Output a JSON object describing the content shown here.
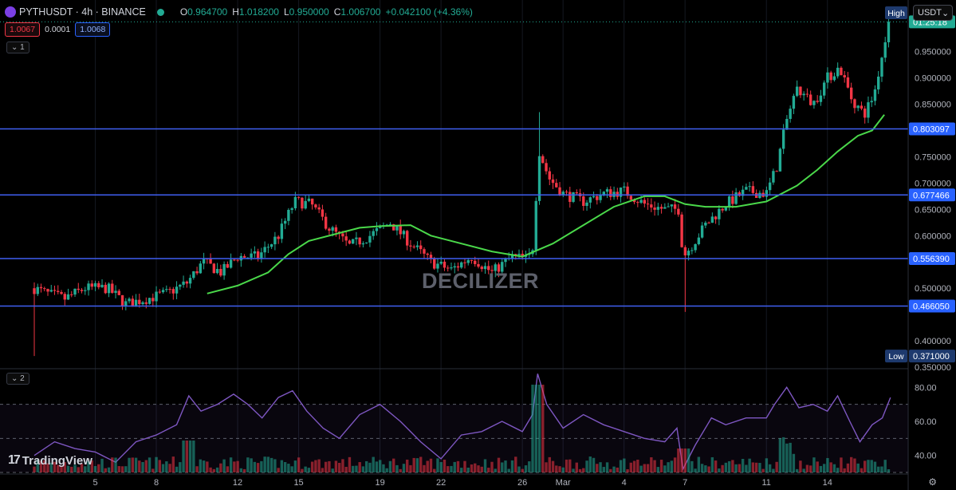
{
  "header": {
    "symbol": "PYTHUSDT · 4h · BINANCE",
    "open_label": "O",
    "open": "0.964700",
    "high_label": "H",
    "high": "1.018200",
    "low_label": "L",
    "low": "0.950000",
    "close_label": "C",
    "close": "1.006700",
    "change": "+0.042100 (+4.36%)",
    "bid": "1.0067",
    "spread": "0.0001",
    "ask": "1.0068",
    "pane1_label": "1",
    "pane2_label": "2",
    "currency": "USDT",
    "watermark": "DECILIZER",
    "brand": "TradingView"
  },
  "colors": {
    "up": "#22ab94",
    "down": "#f23645",
    "ma": "#4ad84a",
    "level": "#3f5ef0",
    "rsi": "#7e57c2",
    "background": "#000000"
  },
  "chart_data": [
    {
      "type": "candlestick",
      "interval": "4h",
      "ylim": [
        0.35,
        1.03
      ],
      "yticks": [
        "0.950000",
        "0.900000",
        "0.850000",
        "0.800000",
        "0.750000",
        "0.700000",
        "0.650000",
        "0.600000",
        "0.550000",
        "0.500000",
        "0.450000",
        "0.400000",
        "0.350000"
      ],
      "ytick_values": [
        0.95,
        0.9,
        0.85,
        0.8,
        0.75,
        0.7,
        0.65,
        0.6,
        0.55,
        0.5,
        0.45,
        0.4,
        0.35
      ],
      "xticks": [
        "5",
        "8",
        "12",
        "15",
        "19",
        "22",
        "26",
        "Mar",
        "4",
        "7",
        "11",
        "14"
      ],
      "xtick_positions": [
        3.0,
        6.0,
        10.0,
        13.0,
        17.0,
        20.0,
        24.0,
        26.0,
        29.0,
        32.0,
        36.0,
        39.0
      ],
      "x_range": [
        0,
        42.5
      ],
      "price_levels": [
        {
          "label": "0.803097",
          "value": 0.803097
        },
        {
          "label": "0.677466",
          "value": 0.677466
        },
        {
          "label": "0.556390",
          "value": 0.55639
        },
        {
          "label": "0.466050",
          "value": 0.46605
        }
      ],
      "high_marker": {
        "label": "High",
        "value": 1.0182
      },
      "low_marker": {
        "label": "Low",
        "value": 0.371
      },
      "countdown_label": "01:25:18",
      "last_price": 1.0067,
      "price_path": [
        {
          "x": 0,
          "y": 0.5
        },
        {
          "x": 0.6,
          "y": 0.49
        },
        {
          "x": 1.5,
          "y": 0.48
        },
        {
          "x": 2.5,
          "y": 0.5
        },
        {
          "x": 3.6,
          "y": 0.5
        },
        {
          "x": 4.5,
          "y": 0.47
        },
        {
          "x": 5.5,
          "y": 0.48
        },
        {
          "x": 6.5,
          "y": 0.49
        },
        {
          "x": 7.5,
          "y": 0.51
        },
        {
          "x": 8.3,
          "y": 0.55
        },
        {
          "x": 9.2,
          "y": 0.53
        },
        {
          "x": 10,
          "y": 0.56
        },
        {
          "x": 11,
          "y": 0.56
        },
        {
          "x": 12,
          "y": 0.6
        },
        {
          "x": 12.8,
          "y": 0.665
        },
        {
          "x": 13.6,
          "y": 0.66
        },
        {
          "x": 14.5,
          "y": 0.615
        },
        {
          "x": 15.5,
          "y": 0.58
        },
        {
          "x": 16.5,
          "y": 0.6
        },
        {
          "x": 17.5,
          "y": 0.625
        },
        {
          "x": 18.5,
          "y": 0.585
        },
        {
          "x": 19.5,
          "y": 0.55
        },
        {
          "x": 20.5,
          "y": 0.535
        },
        {
          "x": 21.5,
          "y": 0.56
        },
        {
          "x": 22.5,
          "y": 0.53
        },
        {
          "x": 23.5,
          "y": 0.56
        },
        {
          "x": 24.3,
          "y": 0.555
        },
        {
          "x": 24.6,
          "y": 0.59
        },
        {
          "x": 24.75,
          "y": 0.77
        },
        {
          "x": 25.3,
          "y": 0.71
        },
        {
          "x": 26,
          "y": 0.68
        },
        {
          "x": 27,
          "y": 0.665
        },
        {
          "x": 28,
          "y": 0.68
        },
        {
          "x": 29,
          "y": 0.685
        },
        {
          "x": 30,
          "y": 0.66
        },
        {
          "x": 31,
          "y": 0.65
        },
        {
          "x": 31.7,
          "y": 0.65
        },
        {
          "x": 31.9,
          "y": 0.56
        },
        {
          "x": 32.3,
          "y": 0.58
        },
        {
          "x": 33,
          "y": 0.62
        },
        {
          "x": 34,
          "y": 0.66
        },
        {
          "x": 35,
          "y": 0.685
        },
        {
          "x": 36,
          "y": 0.68
        },
        {
          "x": 36.5,
          "y": 0.73
        },
        {
          "x": 37,
          "y": 0.82
        },
        {
          "x": 37.5,
          "y": 0.88
        },
        {
          "x": 38.3,
          "y": 0.85
        },
        {
          "x": 39,
          "y": 0.9
        },
        {
          "x": 39.6,
          "y": 0.92
        },
        {
          "x": 40.2,
          "y": 0.86
        },
        {
          "x": 40.8,
          "y": 0.83
        },
        {
          "x": 41.3,
          "y": 0.87
        },
        {
          "x": 41.8,
          "y": 0.965
        },
        {
          "x": 42.1,
          "y": 1.0067
        }
      ],
      "ma_path": [
        {
          "x": 8.5,
          "y": 0.49
        },
        {
          "x": 10,
          "y": 0.505
        },
        {
          "x": 11.5,
          "y": 0.53
        },
        {
          "x": 12.5,
          "y": 0.565
        },
        {
          "x": 13.5,
          "y": 0.59
        },
        {
          "x": 15,
          "y": 0.605
        },
        {
          "x": 16,
          "y": 0.615
        },
        {
          "x": 17,
          "y": 0.618
        },
        {
          "x": 18.5,
          "y": 0.62
        },
        {
          "x": 19.5,
          "y": 0.6
        },
        {
          "x": 21,
          "y": 0.585
        },
        {
          "x": 22.5,
          "y": 0.57
        },
        {
          "x": 24,
          "y": 0.56
        },
        {
          "x": 25.5,
          "y": 0.585
        },
        {
          "x": 27,
          "y": 0.62
        },
        {
          "x": 28.5,
          "y": 0.655
        },
        {
          "x": 30,
          "y": 0.675
        },
        {
          "x": 31,
          "y": 0.675
        },
        {
          "x": 32,
          "y": 0.66
        },
        {
          "x": 33,
          "y": 0.655
        },
        {
          "x": 34.5,
          "y": 0.655
        },
        {
          "x": 36,
          "y": 0.665
        },
        {
          "x": 37.5,
          "y": 0.695
        },
        {
          "x": 38.5,
          "y": 0.725
        },
        {
          "x": 39.5,
          "y": 0.76
        },
        {
          "x": 40.5,
          "y": 0.79
        },
        {
          "x": 41.2,
          "y": 0.8
        },
        {
          "x": 41.8,
          "y": 0.83
        }
      ]
    },
    {
      "type": "line",
      "indicator": "RSI",
      "ylim": [
        30,
        90
      ],
      "yticks": [
        "80.00",
        "60.00",
        "40.00"
      ],
      "ytick_values": [
        80,
        60,
        40
      ],
      "bands": [
        70,
        50,
        30
      ],
      "rsi_path": [
        {
          "x": 0,
          "y": 40
        },
        {
          "x": 1,
          "y": 48
        },
        {
          "x": 2,
          "y": 44
        },
        {
          "x": 3,
          "y": 42
        },
        {
          "x": 4,
          "y": 36
        },
        {
          "x": 5,
          "y": 48
        },
        {
          "x": 6,
          "y": 52
        },
        {
          "x": 7,
          "y": 58
        },
        {
          "x": 7.6,
          "y": 75
        },
        {
          "x": 8.2,
          "y": 66
        },
        {
          "x": 9,
          "y": 70
        },
        {
          "x": 9.8,
          "y": 76
        },
        {
          "x": 10.5,
          "y": 70
        },
        {
          "x": 11.2,
          "y": 62
        },
        {
          "x": 12,
          "y": 74
        },
        {
          "x": 12.7,
          "y": 78
        },
        {
          "x": 13.4,
          "y": 66
        },
        {
          "x": 14.2,
          "y": 56
        },
        {
          "x": 15,
          "y": 50
        },
        {
          "x": 16,
          "y": 64
        },
        {
          "x": 17,
          "y": 70
        },
        {
          "x": 18,
          "y": 60
        },
        {
          "x": 19,
          "y": 48
        },
        {
          "x": 20,
          "y": 38
        },
        {
          "x": 21,
          "y": 52
        },
        {
          "x": 22,
          "y": 54
        },
        {
          "x": 23,
          "y": 60
        },
        {
          "x": 24,
          "y": 54
        },
        {
          "x": 24.5,
          "y": 64
        },
        {
          "x": 24.75,
          "y": 88
        },
        {
          "x": 25.2,
          "y": 70
        },
        {
          "x": 26,
          "y": 56
        },
        {
          "x": 27,
          "y": 64
        },
        {
          "x": 28,
          "y": 58
        },
        {
          "x": 29,
          "y": 54
        },
        {
          "x": 30,
          "y": 50
        },
        {
          "x": 31,
          "y": 48
        },
        {
          "x": 31.6,
          "y": 56
        },
        {
          "x": 31.9,
          "y": 32
        },
        {
          "x": 32.5,
          "y": 46
        },
        {
          "x": 33.3,
          "y": 62
        },
        {
          "x": 34,
          "y": 58
        },
        {
          "x": 35,
          "y": 62
        },
        {
          "x": 36,
          "y": 62
        },
        {
          "x": 36.4,
          "y": 70
        },
        {
          "x": 37,
          "y": 80
        },
        {
          "x": 37.6,
          "y": 68
        },
        {
          "x": 38.3,
          "y": 70
        },
        {
          "x": 39,
          "y": 66
        },
        {
          "x": 39.5,
          "y": 75
        },
        {
          "x": 40.1,
          "y": 60
        },
        {
          "x": 40.6,
          "y": 48
        },
        {
          "x": 41.2,
          "y": 58
        },
        {
          "x": 41.7,
          "y": 62
        },
        {
          "x": 42.1,
          "y": 74
        }
      ]
    }
  ]
}
